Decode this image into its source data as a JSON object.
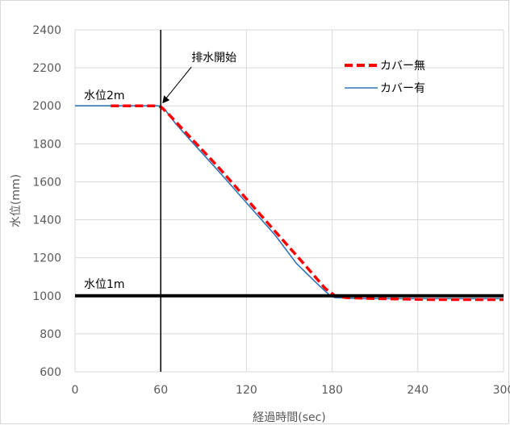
{
  "chart_data": {
    "type": "line",
    "title": "",
    "xlabel": "経過時間(sec)",
    "ylabel": "水位(mm)",
    "xlim": [
      0,
      300
    ],
    "ylim": [
      600,
      2400
    ],
    "x_ticks": [
      0,
      60,
      120,
      180,
      240,
      300
    ],
    "y_ticks": [
      600,
      800,
      1000,
      1200,
      1400,
      1600,
      1800,
      2000,
      2200,
      2400
    ],
    "grid": true,
    "legend_position": "top-right",
    "series": [
      {
        "name": "カバー無",
        "color": "#ff0000",
        "style": "dashed",
        "points": [
          [
            25,
            2000
          ],
          [
            55,
            2000
          ],
          [
            60,
            1995
          ],
          [
            65,
            1960
          ],
          [
            80,
            1840
          ],
          [
            100,
            1680
          ],
          [
            120,
            1510
          ],
          [
            140,
            1340
          ],
          [
            160,
            1170
          ],
          [
            175,
            1040
          ],
          [
            182,
            1000
          ],
          [
            190,
            990
          ],
          [
            210,
            985
          ],
          [
            250,
            980
          ],
          [
            300,
            980
          ]
        ]
      },
      {
        "name": "カバー有",
        "color": "#2e75b6",
        "style": "solid",
        "points": [
          [
            0,
            2000
          ],
          [
            58,
            2000
          ],
          [
            62,
            1990
          ],
          [
            70,
            1910
          ],
          [
            80,
            1825
          ],
          [
            100,
            1660
          ],
          [
            120,
            1490
          ],
          [
            140,
            1320
          ],
          [
            155,
            1170
          ],
          [
            170,
            1060
          ],
          [
            178,
            1005
          ],
          [
            182,
            990
          ],
          [
            200,
            985
          ],
          [
            250,
            985
          ],
          [
            300,
            985
          ]
        ]
      }
    ],
    "reference_lines": [
      {
        "orientation": "horizontal",
        "value": 1000,
        "color": "#000000"
      },
      {
        "orientation": "vertical",
        "value": 60,
        "color": "#000000"
      }
    ],
    "annotations": [
      {
        "text": "排水開始",
        "x": 60,
        "y": 2000
      },
      {
        "text": "水位2m",
        "y": 2000
      },
      {
        "text": "水位1m",
        "y": 1000
      }
    ]
  }
}
